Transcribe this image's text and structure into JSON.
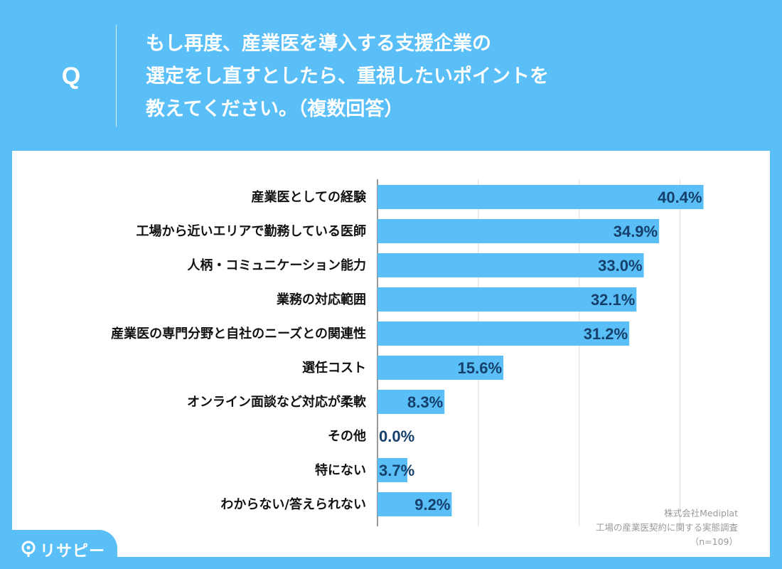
{
  "question": {
    "mark": "Q",
    "lines": [
      "もし再度、産業医を導入する支援企業の",
      "選定をし直すとしたら、重視したいポイントを",
      "教えてください。（複数回答）"
    ]
  },
  "chart_data": {
    "type": "bar",
    "orientation": "horizontal",
    "categories": [
      "産業医としての経験",
      "工場から近いエリアで勤務している医師",
      "人柄・コミュニケーション能力",
      "業務の対応範囲",
      "産業医の専門分野と自社のニーズとの関連性",
      "選任コスト",
      "オンライン面談など対応が柔軟",
      "その他",
      "特にない",
      "わからない/答えられない"
    ],
    "values": [
      40.4,
      34.9,
      33.0,
      32.1,
      31.2,
      15.6,
      8.3,
      0.0,
      3.7,
      9.2
    ],
    "value_labels": [
      "40.4%",
      "34.9%",
      "33.0%",
      "32.1%",
      "31.2%",
      "15.6%",
      "8.3%",
      "0.0%",
      "3.7%",
      "9.2%"
    ],
    "xlim": [
      0,
      50
    ],
    "grid": true,
    "bar_color": "#5bbff7",
    "label_color": "#15406b"
  },
  "source": {
    "company": "株式会社Mediplat",
    "survey": "工場の産業医契約に関する実態調査",
    "sample": "（n=109）"
  },
  "logo": {
    "text": "リサピー"
  }
}
